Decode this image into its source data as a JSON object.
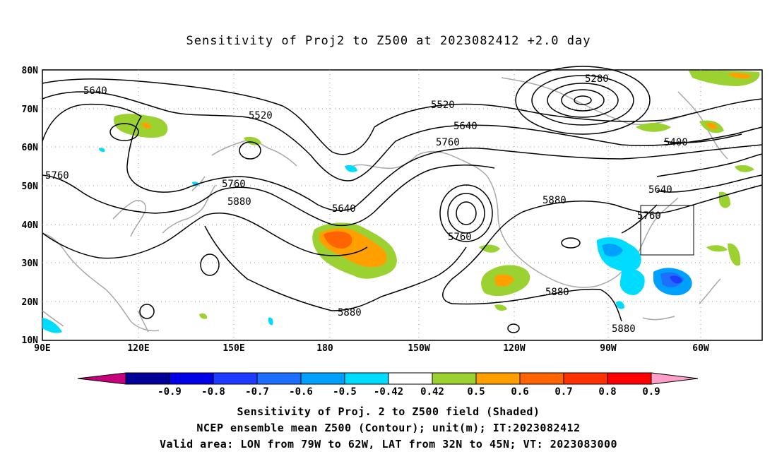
{
  "title": "Sensitivity of Proj2 to Z500 at 2023082412 +2.0 day",
  "lat_ticks": [
    "80N",
    "70N",
    "60N",
    "50N",
    "40N",
    "30N",
    "20N",
    "10N"
  ],
  "lon_ticks": [
    "90E",
    "120E",
    "150E",
    "180",
    "150W",
    "120W",
    "90W",
    "60W"
  ],
  "contour_labels": [
    "5640",
    "5520",
    "5520",
    "5640",
    "5760",
    "5280",
    "5400",
    "5760",
    "5760",
    "5880",
    "5640",
    "5760",
    "5880",
    "5880",
    "5880",
    "5880",
    "5640",
    "5760"
  ],
  "colorbar": {
    "ticks": [
      "-0.9",
      "-0.8",
      "-0.7",
      "-0.6",
      "-0.5",
      "-0.42",
      "0.42",
      "0.5",
      "0.6",
      "0.7",
      "0.8",
      "0.9"
    ],
    "colors": [
      "#000096",
      "#0000e6",
      "#1e3cff",
      "#1e6eff",
      "#00a0ff",
      "#00dcff",
      "#ffffff",
      "#9bd232",
      "#ffa000",
      "#ff6400",
      "#ff3200",
      "#ff0000"
    ],
    "low_end": "#c8007d",
    "high_end": "#ffa0c8"
  },
  "captions": {
    "line1": "Sensitivity of Proj. 2 to Z500 field (Shaded)",
    "line2": "NCEP ensemble mean Z500 (Contour); unit(m); IT:2023082412",
    "line3": "Valid area: LON from 79W to 62W, LAT from 32N to 45N; VT: 2023083000"
  }
}
